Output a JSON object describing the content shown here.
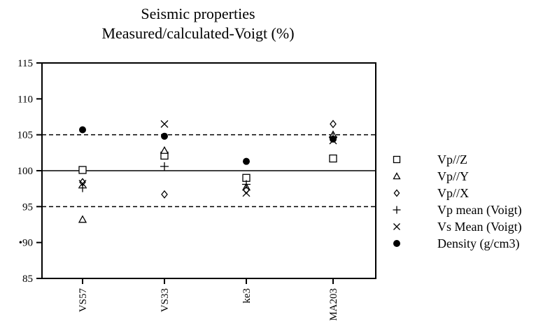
{
  "chart_data": {
    "type": "scatter",
    "title": "Seismic properties",
    "subtitle": "Measured/calculated-Voigt (%)",
    "xlabel": "",
    "ylabel": "",
    "categories": [
      "VS57",
      "VS33",
      "ke3",
      "MA203"
    ],
    "ylim": [
      85,
      115
    ],
    "yticks": [
      85,
      90,
      95,
      100,
      105,
      110,
      115
    ],
    "ytick_labels": [
      "85",
      "•90",
      "95",
      "100",
      "105",
      "110",
      "115"
    ],
    "reference_lines": [
      {
        "y": 105,
        "style": "dashed"
      },
      {
        "y": 100,
        "style": "solid"
      },
      {
        "y": 95,
        "style": "dashed"
      }
    ],
    "grid": false,
    "legend_position": "right",
    "series": [
      {
        "name": "Vp//Z",
        "marker": "square",
        "values": [
          100.1,
          102.1,
          99.0,
          101.7
        ]
      },
      {
        "name": "Vp//Y",
        "marker": "triangle",
        "values": [
          93.2,
          102.8,
          97.7,
          105.0
        ]
      },
      {
        "name": "Vp//X",
        "marker": "diamond",
        "values": [
          98.4,
          96.7,
          97.3,
          106.5
        ]
      },
      {
        "name": "Vp mean (Voigt)",
        "marker": "plus",
        "values": [
          97.6,
          100.6,
          98.1,
          104.7
        ]
      },
      {
        "name": "Vs Mean (Voigt)",
        "marker": "x",
        "values": [
          98.2,
          106.5,
          96.9,
          104.2
        ]
      },
      {
        "name": "Density (g/cm3)",
        "marker": "circle",
        "values": [
          105.7,
          104.8,
          101.3,
          104.4
        ]
      }
    ]
  }
}
